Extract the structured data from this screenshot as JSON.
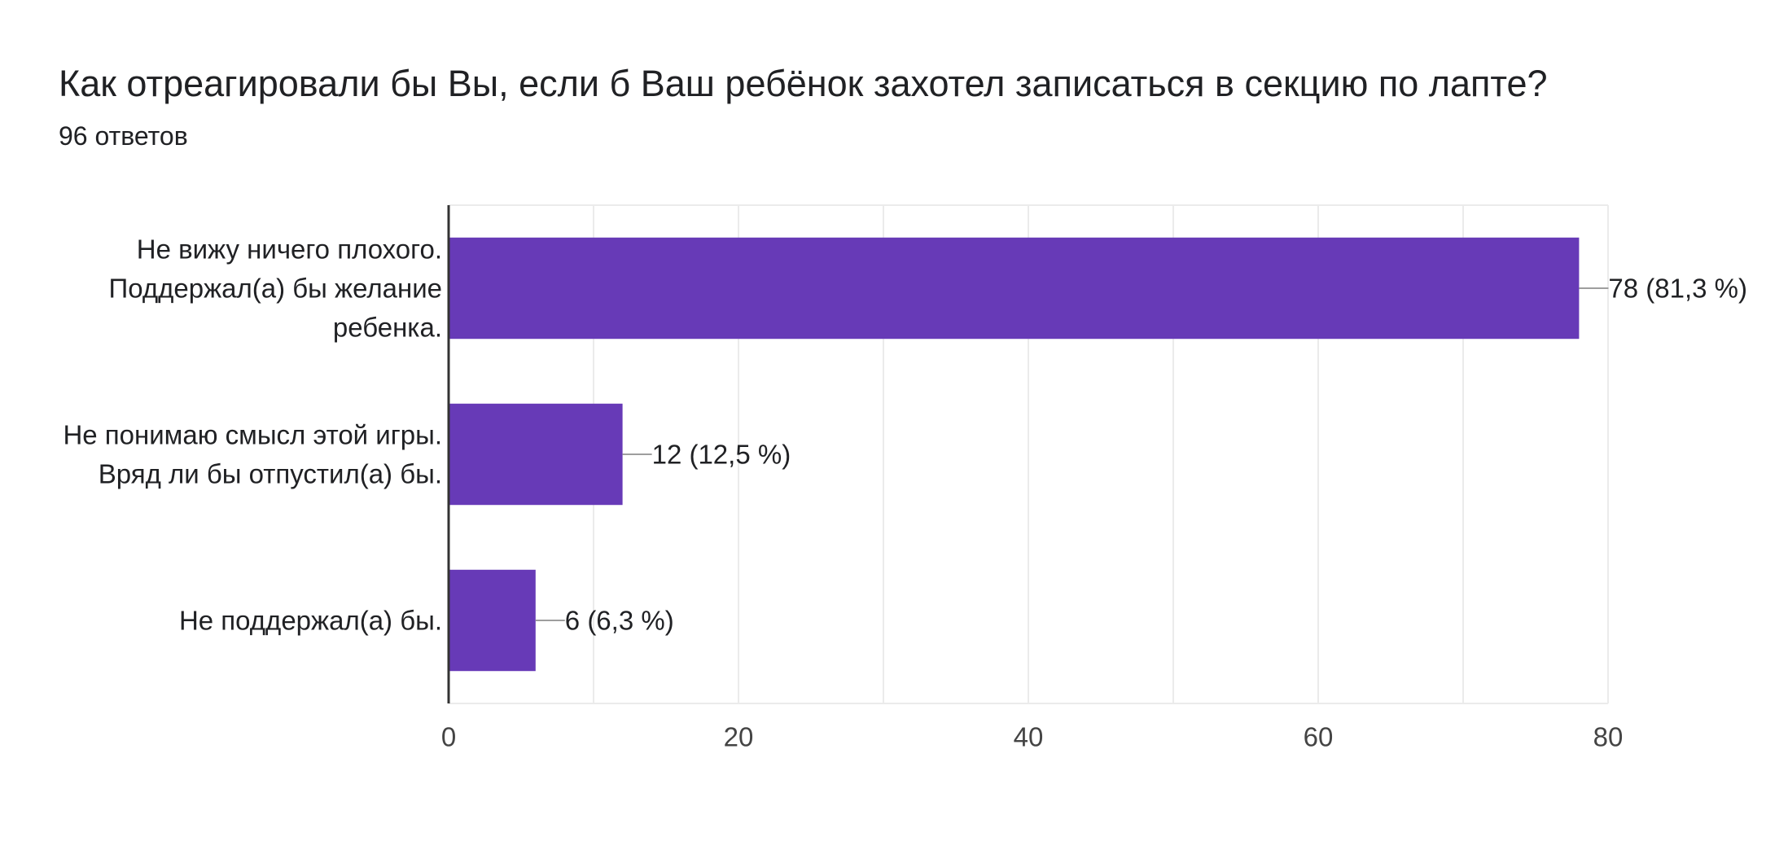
{
  "chart_data": {
    "type": "bar",
    "orientation": "horizontal",
    "title": "Как отреагировали бы Вы, если б Ваш ребёнок захотел записаться в секцию по лапте?",
    "subtitle": "96 ответов",
    "categories": [
      [
        "Не вижу ничего плохого.",
        "Поддержал(а) бы желание",
        "ребенка."
      ],
      [
        "Не понимаю смысл этой игры.",
        "Вряд ли бы отпустил(а) бы."
      ],
      [
        "Не поддержал(а) бы."
      ]
    ],
    "values": [
      78,
      12,
      6
    ],
    "value_labels": [
      "78 (81,3 %)",
      "12 (12,5 %)",
      "6 (6,3 %)"
    ],
    "xlim": [
      0,
      80
    ],
    "xticks": [
      0,
      20,
      40,
      60,
      80
    ],
    "grid": true,
    "bar_color": "#673ab7"
  }
}
